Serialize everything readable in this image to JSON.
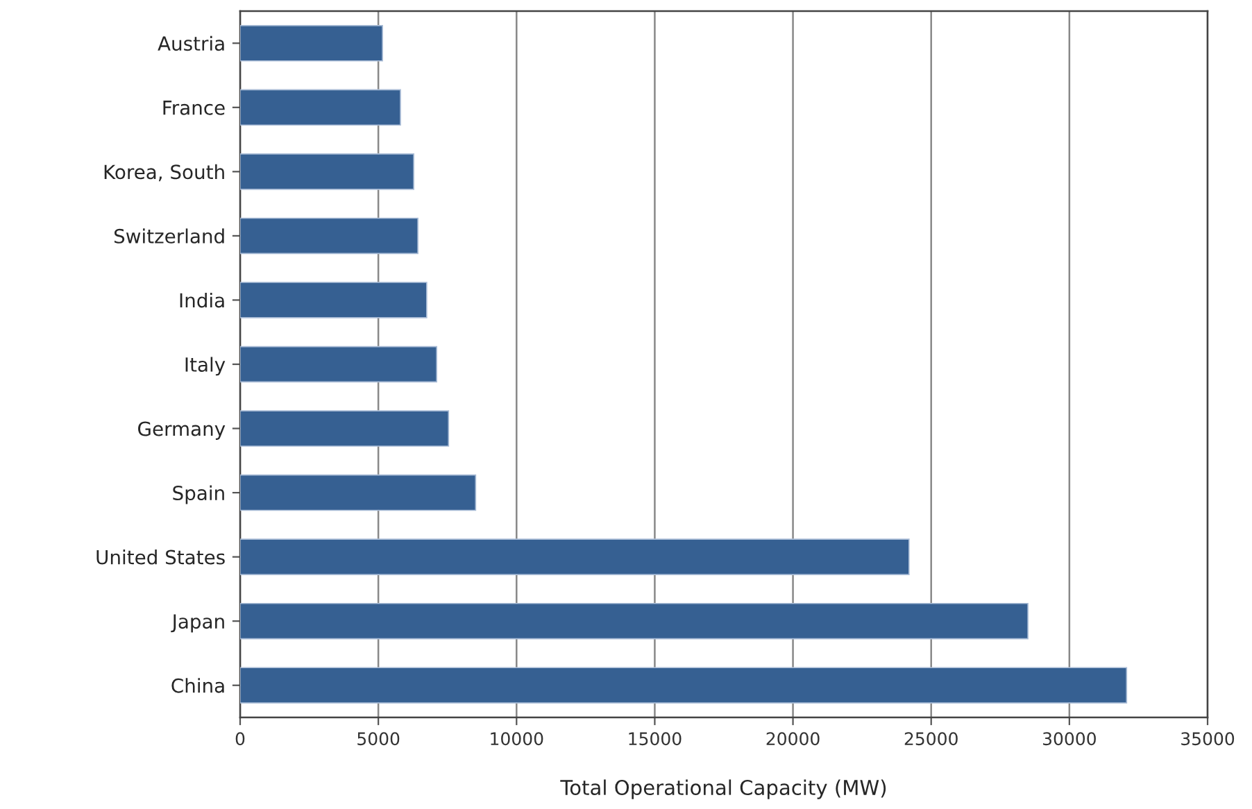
{
  "chart_data": {
    "type": "bar",
    "orientation": "horizontal",
    "xlabel": "Total Operational Capacity (MW)",
    "categories": [
      "Austria",
      "France",
      "Korea, South",
      "Switzerland",
      "India",
      "Italy",
      "Germany",
      "Spain",
      "United States",
      "Japan",
      "China"
    ],
    "values": [
      5150,
      5800,
      6280,
      6430,
      6750,
      7110,
      7540,
      8520,
      24200,
      28500,
      32070
    ],
    "color": "#366092",
    "xlim": [
      0,
      35000
    ],
    "xticks": [
      0,
      5000,
      10000,
      15000,
      20000,
      25000,
      30000,
      35000
    ],
    "grid": "x",
    "legend": false
  }
}
